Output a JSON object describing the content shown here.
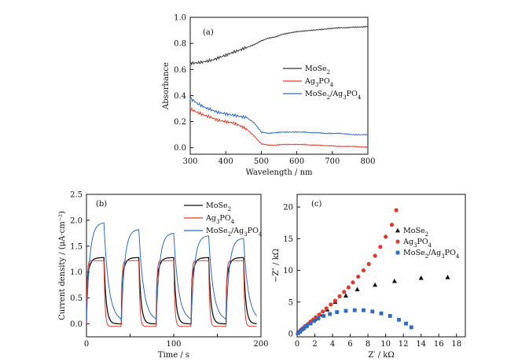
{
  "chart_data": [
    {
      "panel": "(a)",
      "type": "line",
      "xlabel": "Wavelength / nm",
      "ylabel": "Absorbance",
      "xlim": [
        300,
        800
      ],
      "ylim": [
        -0.05,
        1.0
      ],
      "xticks": [
        "300",
        "400",
        "500",
        "600",
        "700",
        "800"
      ],
      "yticks": [
        "0.0",
        "0.2",
        "0.4",
        "0.6",
        "0.8",
        "1.0"
      ],
      "legend_position": "middle-right",
      "x": [
        300,
        320,
        340,
        360,
        380,
        400,
        420,
        440,
        460,
        480,
        500,
        520,
        540,
        560,
        580,
        600,
        620,
        640,
        660,
        680,
        700,
        720,
        740,
        760,
        780,
        800
      ],
      "series": [
        {
          "name": "MoSe2",
          "name_main": "MoSe",
          "name_sub": "2",
          "color": "#333333",
          "values": [
            0.65,
            0.65,
            0.66,
            0.67,
            0.69,
            0.71,
            0.73,
            0.75,
            0.77,
            0.79,
            0.82,
            0.84,
            0.85,
            0.87,
            0.88,
            0.89,
            0.895,
            0.9,
            0.905,
            0.91,
            0.915,
            0.92,
            0.92,
            0.925,
            0.925,
            0.93
          ]
        },
        {
          "name": "Ag3PO4",
          "name_main": "Ag",
          "name_sub": "3",
          "name_main2": "PO",
          "name_sub2": "4",
          "color": "#e03a2f",
          "values": [
            0.3,
            0.27,
            0.25,
            0.23,
            0.21,
            0.2,
            0.19,
            0.17,
            0.14,
            0.09,
            0.03,
            0.02,
            0.02,
            0.025,
            0.025,
            0.025,
            0.025,
            0.02,
            0.02,
            0.015,
            0.015,
            0.01,
            0.01,
            0.01,
            0.005,
            0.005
          ]
        },
        {
          "name": "MoSe2/Ag3PO4",
          "name_main": "MoSe",
          "name_sub": "2",
          "name_main2": "/Ag",
          "name_sub2": "3",
          "name_main3": "PO",
          "name_sub3": "4",
          "color": "#2e6bc4",
          "values": [
            0.38,
            0.34,
            0.31,
            0.29,
            0.27,
            0.26,
            0.25,
            0.24,
            0.23,
            0.19,
            0.12,
            0.11,
            0.115,
            0.12,
            0.12,
            0.12,
            0.12,
            0.115,
            0.115,
            0.11,
            0.11,
            0.11,
            0.105,
            0.1,
            0.1,
            0.1
          ]
        }
      ]
    },
    {
      "panel": "(b)",
      "type": "line",
      "xlabel": "Time / s",
      "ylabel": "Current density / (μA·cm⁻²)",
      "xlim": [
        0,
        200
      ],
      "ylim": [
        -0.25,
        2.5
      ],
      "xticks": [
        "0",
        "100",
        "200"
      ],
      "yticks": [
        "0.0",
        "0.5",
        "1.0",
        "1.5",
        "2.0",
        "2.5"
      ],
      "legend_position": "top-right",
      "light_periods": [
        [
          0,
          20
        ],
        [
          40,
          60
        ],
        [
          80,
          100
        ],
        [
          120,
          140
        ],
        [
          160,
          180
        ]
      ],
      "series": [
        {
          "name": "MoSe2",
          "name_main": "MoSe",
          "name_sub": "2",
          "color": "#111111",
          "on_level": 1.28,
          "off_level": 0.0
        },
        {
          "name": "Ag3PO4",
          "name_main": "Ag",
          "name_sub": "3",
          "name_main2": "PO",
          "name_sub2": "4",
          "color": "#e03a2f",
          "on_level": 1.22,
          "off_level": -0.05
        },
        {
          "name": "MoSe2/Ag3PO4",
          "name_main": "MoSe",
          "name_sub": "2",
          "name_main2": "/Ag",
          "name_sub2": "3",
          "name_main3": "PO",
          "name_sub3": "4",
          "color": "#2e6bc4",
          "peaks": [
            1.95,
            1.82,
            1.75,
            1.7,
            1.65
          ],
          "off_level": 0.05
        }
      ]
    },
    {
      "panel": "(c)",
      "type": "scatter",
      "xlabel": "Z′ / kΩ",
      "ylabel": "−Z″ / kΩ",
      "xlim": [
        0,
        19
      ],
      "ylim": [
        -0.5,
        22
      ],
      "xticks": [
        "0",
        "2",
        "4",
        "6",
        "8",
        "10",
        "12",
        "14",
        "16",
        "18"
      ],
      "yticks": [
        "0",
        "5",
        "10",
        "15",
        "20"
      ],
      "legend_position": "middle-right",
      "series": [
        {
          "name": "MoSe2",
          "name_main": "MoSe",
          "name_sub": "2",
          "color": "#111111",
          "marker": "triangle",
          "x": [
            0.1,
            0.3,
            0.6,
            1.0,
            1.5,
            2.0,
            2.6,
            3.4,
            4.3,
            5.5,
            6.8,
            8.8,
            11.0,
            14.0,
            17.0
          ],
          "y": [
            0.1,
            0.4,
            0.8,
            1.2,
            1.7,
            2.3,
            3.0,
            3.8,
            5.0,
            6.0,
            7.0,
            7.7,
            8.3,
            8.8,
            8.9
          ]
        },
        {
          "name": "Ag3PO4",
          "name_main": "Ag",
          "name_sub": "3",
          "name_main2": "PO",
          "name_sub2": "4",
          "color": "#e03a2f",
          "marker": "circle",
          "x": [
            0.1,
            0.3,
            0.6,
            0.9,
            1.2,
            1.5,
            1.8,
            2.1,
            2.5,
            2.9,
            3.3,
            3.8,
            4.3,
            4.8,
            5.3,
            5.8,
            6.3,
            6.9,
            7.5,
            8.1,
            8.8,
            9.4,
            10.0,
            10.7,
            11.2
          ],
          "y": [
            0.1,
            0.4,
            0.8,
            1.2,
            1.5,
            1.9,
            2.2,
            2.6,
            3.0,
            3.5,
            4.0,
            4.6,
            5.2,
            5.9,
            6.6,
            7.3,
            8.1,
            9.0,
            10.0,
            11.0,
            12.3,
            13.7,
            15.3,
            17.2,
            19.5
          ]
        },
        {
          "name": "MoSe2/Ag3PO4",
          "name_main": "MoSe",
          "name_sub": "2",
          "name_main2": "/Ag",
          "name_sub2": "3",
          "name_main3": "PO",
          "name_sub3": "4",
          "color": "#2e6bc4",
          "marker": "square",
          "x": [
            0.1,
            0.3,
            0.5,
            0.8,
            1.1,
            1.5,
            1.9,
            2.4,
            3.0,
            3.7,
            4.5,
            5.5,
            6.5,
            7.5,
            8.5,
            9.5,
            10.5,
            11.5,
            12.3,
            12.9
          ],
          "y": [
            0.1,
            0.3,
            0.6,
            0.9,
            1.2,
            1.6,
            2.0,
            2.4,
            2.8,
            3.1,
            3.4,
            3.6,
            3.7,
            3.7,
            3.5,
            3.2,
            2.8,
            2.2,
            1.6,
            1.0
          ]
        }
      ]
    }
  ]
}
